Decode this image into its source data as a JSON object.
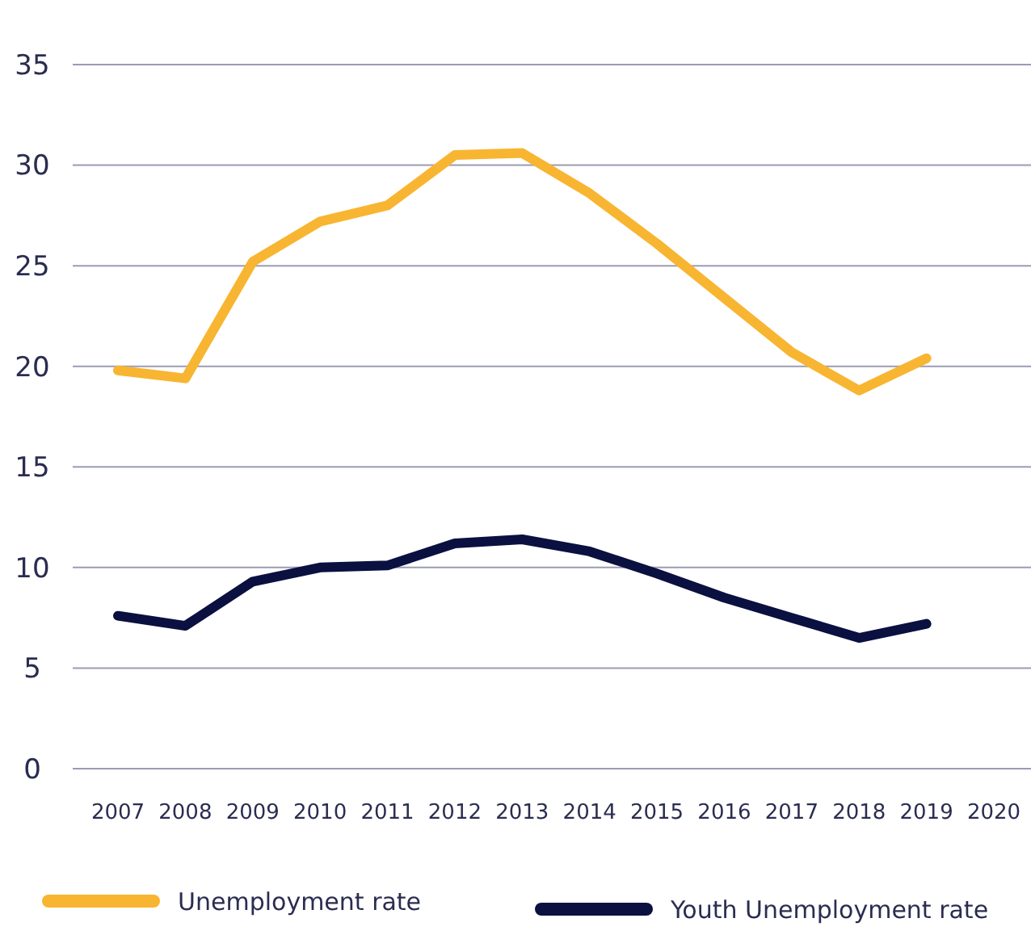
{
  "chart_data": {
    "type": "line",
    "categories": [
      "2007",
      "2008",
      "2009",
      "2010",
      "2011",
      "2012",
      "2013",
      "2014",
      "2015",
      "2016",
      "2017",
      "2018",
      "2019",
      "2020"
    ],
    "series": [
      {
        "name": "Unemployment rate",
        "color": "#f8b531",
        "values": [
          19.8,
          19.4,
          25.2,
          27.2,
          28.0,
          30.5,
          30.6,
          28.6,
          26.1,
          23.4,
          20.7,
          18.8,
          20.4,
          null
        ]
      },
      {
        "name": "Youth Unemployment rate",
        "color": "#0a1040",
        "values": [
          7.6,
          7.1,
          9.3,
          10.0,
          10.1,
          11.2,
          11.4,
          10.8,
          9.7,
          8.5,
          7.5,
          6.5,
          7.2,
          null
        ]
      }
    ],
    "ylim": [
      0,
      35
    ],
    "yticks": [
      0,
      5,
      10,
      15,
      20,
      25,
      30,
      35
    ],
    "grid": "y",
    "legend": "bottom",
    "marker": "none",
    "line_style": "solid"
  }
}
